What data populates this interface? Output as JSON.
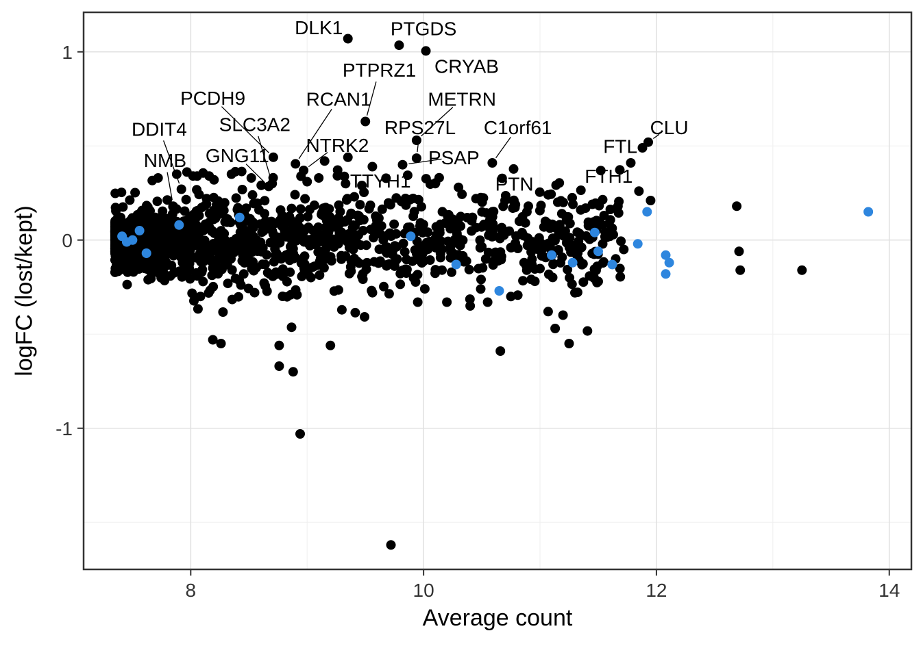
{
  "chart_data": {
    "type": "scatter",
    "title": "",
    "xlabel": "Average count",
    "ylabel": "logFC (lost/kept)",
    "xlim": [
      7.08,
      14.19
    ],
    "ylim": [
      -1.75,
      1.21
    ],
    "x_ticks": [
      8,
      10,
      12,
      14
    ],
    "y_ticks": [
      -1,
      0,
      1
    ],
    "x_minor_ticks": [
      7,
      9,
      11,
      13
    ],
    "y_minor_ticks": [
      -1.5,
      -0.5,
      0.5
    ],
    "grid": true,
    "legend_position": "none",
    "point_color": "#000000",
    "highlight_color": "#2E86DE",
    "point_radius": 7,
    "labeled_points": [
      {
        "gene": "DLK1",
        "x": 9.35,
        "y": 1.07,
        "label_x": 9.1,
        "label_y": 1.13,
        "line": false
      },
      {
        "gene": "PTGDS",
        "x": 9.79,
        "y": 1.035,
        "label_x": 10.0,
        "label_y": 1.125,
        "line": false
      },
      {
        "gene": "CRYAB",
        "x": 10.02,
        "y": 1.005,
        "label_x": 10.37,
        "label_y": 0.925,
        "line": false
      },
      {
        "gene": "PTPRZ1",
        "x": 9.5,
        "y": 0.63,
        "label_x": 9.62,
        "label_y": 0.905,
        "line": true
      },
      {
        "gene": "METRN",
        "x": 9.94,
        "y": 0.53,
        "label_x": 10.33,
        "label_y": 0.75,
        "line": true
      },
      {
        "gene": "PCDH9",
        "x": 8.71,
        "y": 0.44,
        "label_x": 8.19,
        "label_y": 0.755,
        "line": true
      },
      {
        "gene": "RCAN1",
        "x": 8.9,
        "y": 0.405,
        "label_x": 9.27,
        "label_y": 0.75,
        "line": true
      },
      {
        "gene": "SLC3A2",
        "x": 8.7,
        "y": 0.3,
        "label_x": 8.55,
        "label_y": 0.615,
        "line": true
      },
      {
        "gene": "DDIT4",
        "x": 7.92,
        "y": 0.27,
        "label_x": 7.73,
        "label_y": 0.59,
        "line": true
      },
      {
        "gene": "NMB",
        "x": 7.85,
        "y": 0.18,
        "label_x": 7.78,
        "label_y": 0.425,
        "line": true
      },
      {
        "gene": "GNG11",
        "x": 8.67,
        "y": 0.285,
        "label_x": 8.4,
        "label_y": 0.45,
        "line": true
      },
      {
        "gene": "NTRK2",
        "x": 8.97,
        "y": 0.37,
        "label_x": 9.26,
        "label_y": 0.505,
        "line": true
      },
      {
        "gene": "RPS27L",
        "x": 9.94,
        "y": 0.435,
        "label_x": 9.97,
        "label_y": 0.6,
        "line": true
      },
      {
        "gene": "C1orf61",
        "x": 10.59,
        "y": 0.41,
        "label_x": 10.81,
        "label_y": 0.6,
        "line": true
      },
      {
        "gene": "TTYH1",
        "x": 9.56,
        "y": 0.39,
        "label_x": 9.63,
        "label_y": 0.315,
        "line": false
      },
      {
        "gene": "PSAP",
        "x": 9.82,
        "y": 0.4,
        "label_x": 10.26,
        "label_y": 0.44,
        "line": true
      },
      {
        "gene": "PTN",
        "x": 10.7,
        "y": 0.21,
        "label_x": 10.78,
        "label_y": 0.3,
        "line": false
      },
      {
        "gene": "CLU",
        "x": 11.93,
        "y": 0.52,
        "label_x": 12.11,
        "label_y": 0.6,
        "line": true
      },
      {
        "gene": "FTL",
        "x": 11.78,
        "y": 0.41,
        "label_x": 11.69,
        "label_y": 0.5,
        "line": false
      },
      {
        "gene": "FTH1",
        "x": 11.85,
        "y": 0.26,
        "label_x": 11.59,
        "label_y": 0.34,
        "line": false
      }
    ],
    "highlight_points": [
      [
        7.41,
        0.02
      ],
      [
        7.45,
        -0.01
      ],
      [
        7.5,
        0.0
      ],
      [
        7.56,
        0.05
      ],
      [
        7.62,
        -0.07
      ],
      [
        7.9,
        0.08
      ],
      [
        8.42,
        0.12
      ],
      [
        9.89,
        0.02
      ],
      [
        10.28,
        -0.13
      ],
      [
        10.65,
        -0.27
      ],
      [
        11.1,
        -0.08
      ],
      [
        11.28,
        -0.12
      ],
      [
        11.47,
        0.04
      ],
      [
        11.5,
        -0.06
      ],
      [
        11.62,
        -0.13
      ],
      [
        11.84,
        -0.02
      ],
      [
        11.92,
        0.15
      ],
      [
        12.08,
        -0.08
      ],
      [
        12.11,
        -0.12
      ],
      [
        12.08,
        -0.18
      ],
      [
        13.82,
        0.15
      ]
    ],
    "outlier_points": [
      [
        9.72,
        -1.62
      ],
      [
        8.94,
        -1.03
      ],
      [
        8.76,
        -0.67
      ],
      [
        8.88,
        -0.7
      ],
      [
        8.19,
        -0.53
      ],
      [
        8.26,
        -0.55
      ],
      [
        8.76,
        -0.56
      ],
      [
        9.2,
        -0.56
      ],
      [
        10.66,
        -0.59
      ],
      [
        11.13,
        -0.47
      ],
      [
        11.25,
        -0.55
      ],
      [
        11.07,
        -0.38
      ],
      [
        12.69,
        0.18
      ],
      [
        12.71,
        -0.06
      ],
      [
        12.72,
        -0.16
      ],
      [
        13.25,
        -0.16
      ],
      [
        11.95,
        0.21
      ],
      [
        11.67,
        0.18
      ],
      [
        11.45,
        0.19
      ],
      [
        10.9,
        0.18
      ],
      [
        11.2,
        0.2
      ],
      [
        11.35,
        0.16
      ],
      [
        11.55,
        0.13
      ],
      [
        11.88,
        0.49
      ],
      [
        7.72,
        0.33
      ],
      [
        7.88,
        0.35
      ],
      [
        8.02,
        0.34
      ],
      [
        8.2,
        0.32
      ],
      [
        8.35,
        0.35
      ],
      [
        8.52,
        0.33
      ],
      [
        9.1,
        0.33
      ],
      [
        9.33,
        0.3
      ],
      [
        9.47,
        0.29
      ],
      [
        10.1,
        0.3
      ],
      [
        10.3,
        0.28
      ],
      [
        10.45,
        0.22
      ],
      [
        9.35,
        0.44
      ],
      [
        9.15,
        0.42
      ],
      [
        9.0,
        0.31
      ],
      [
        10.55,
        -0.33
      ],
      [
        10.75,
        -0.3
      ],
      [
        10.4,
        -0.35
      ],
      [
        10.2,
        -0.33
      ],
      [
        9.95,
        -0.33
      ],
      [
        11.3,
        -0.28
      ],
      [
        11.5,
        -0.22
      ],
      [
        11.65,
        -0.1
      ],
      [
        11.6,
        0.02
      ],
      [
        11.72,
        -0.05
      ]
    ],
    "cloud": {
      "description": "dense unlabeled black point cloud centered on logFC 0",
      "n": 1600,
      "seed": 11,
      "x_min": 7.35,
      "x_span": 4.35,
      "x_pow": 2.6,
      "y_sd": 0.13,
      "wide_frac": 0.09,
      "wide_mult": 2.1,
      "y_clamp": [
        -0.6,
        0.38
      ]
    },
    "style": {
      "panel_background": "#FFFFFF",
      "panel_border_color": "#333333",
      "grid_major_color": "#E2E2E2",
      "grid_minor_color": "#F0F0F0",
      "tick_label_color": "#333333",
      "axis_title_color": "#000000"
    }
  }
}
